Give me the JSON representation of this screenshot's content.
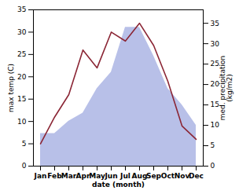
{
  "chart_data": {
    "type": "line",
    "categories": [
      "Jan",
      "Feb",
      "Mar",
      "Apr",
      "May",
      "Jun",
      "Jul",
      "Aug",
      "Sep",
      "Oct",
      "Nov",
      "Dec"
    ],
    "xlabel": "date (month)",
    "ylabel": "max temp (C)",
    "y2label": "med. precipitation\n(kg/m2)",
    "ylim": [
      0,
      35
    ],
    "yticks": [
      0,
      5,
      10,
      15,
      20,
      25,
      30,
      35
    ],
    "y2lim": [
      0,
      38.3
    ],
    "y2ticks": [
      0,
      5,
      10,
      15,
      20,
      25,
      30,
      35
    ],
    "series": [
      {
        "type": "area",
        "axis": "y2",
        "color": "#b8c0e8",
        "values": [
          8,
          8,
          11,
          13,
          19,
          23,
          34,
          34,
          27,
          19,
          15,
          10
        ]
      },
      {
        "type": "line",
        "color": "#8b2635",
        "values": [
          5,
          11,
          16,
          26,
          22,
          30,
          28,
          32,
          27,
          19,
          9,
          6
        ]
      }
    ]
  }
}
